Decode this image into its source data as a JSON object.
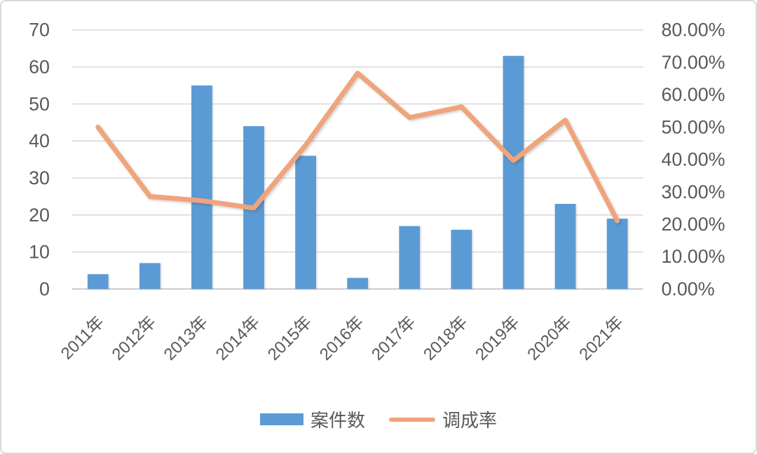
{
  "chart_data": {
    "type": "bar+line combo",
    "categories": [
      "2011年",
      "2012年",
      "2013年",
      "2014年",
      "2015年",
      "2016年",
      "2017年",
      "2018年",
      "2019年",
      "2020年",
      "2021年"
    ],
    "series": [
      {
        "name": "案件数",
        "type": "bar",
        "axis": "left",
        "color": "#5B9BD5",
        "values": [
          4,
          7,
          55,
          44,
          36,
          3,
          17,
          16,
          63,
          23,
          19
        ]
      },
      {
        "name": "调成率",
        "type": "line",
        "axis": "right",
        "color": "#F0A47C",
        "values_percent": [
          50.0,
          28.57,
          27.27,
          25.0,
          44.44,
          66.67,
          52.94,
          56.25,
          39.68,
          52.17,
          21.05
        ]
      }
    ],
    "left_axis": {
      "min": 0,
      "max": 70,
      "step": 10,
      "ticks": [
        "0",
        "10",
        "20",
        "30",
        "40",
        "50",
        "60",
        "70"
      ]
    },
    "right_axis": {
      "min": 0,
      "max": 80,
      "step": 10,
      "ticks": [
        "0.00%",
        "10.00%",
        "20.00%",
        "30.00%",
        "40.00%",
        "50.00%",
        "60.00%",
        "70.00%",
        "80.00%"
      ]
    },
    "grid": true,
    "legend_position": "bottom",
    "colors": {
      "gridline": "#d9d9d9",
      "axis_line": "#bfbfbf",
      "axis_text": "#595959",
      "background": "#ffffff",
      "frame_border": "#d9d9d9"
    }
  }
}
